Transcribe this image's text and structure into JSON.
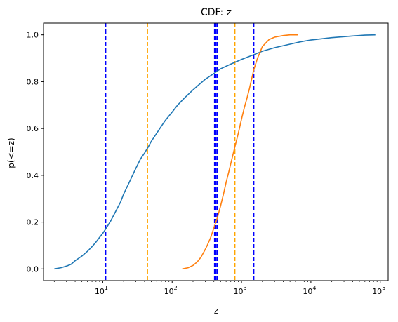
{
  "chart_data": {
    "type": "line",
    "title": "CDF: z",
    "xlabel": "z",
    "ylabel": "p(<=z)",
    "xscale": "log",
    "xlim": [
      1.4,
      130000
    ],
    "ylim": [
      -0.05,
      1.05
    ],
    "x_ticks": [
      {
        "value": 10,
        "base": "10",
        "exp": "1"
      },
      {
        "value": 100,
        "base": "10",
        "exp": "2"
      },
      {
        "value": 1000,
        "base": "10",
        "exp": "3"
      },
      {
        "value": 10000,
        "base": "10",
        "exp": "4"
      },
      {
        "value": 100000,
        "base": "10",
        "exp": "5"
      }
    ],
    "y_ticks": [
      "0.0",
      "0.2",
      "0.4",
      "0.6",
      "0.8",
      "1.0"
    ],
    "grid": false,
    "series": [
      {
        "color": "#1f77b4",
        "points": [
          [
            2,
            0.0
          ],
          [
            2.5,
            0.005
          ],
          [
            3,
            0.012
          ],
          [
            3.5,
            0.02
          ],
          [
            4,
            0.035
          ],
          [
            5,
            0.055
          ],
          [
            6,
            0.075
          ],
          [
            7,
            0.095
          ],
          [
            8,
            0.115
          ],
          [
            9,
            0.135
          ],
          [
            10,
            0.152
          ],
          [
            11,
            0.17
          ],
          [
            13,
            0.205
          ],
          [
            15,
            0.24
          ],
          [
            18,
            0.285
          ],
          [
            20,
            0.32
          ],
          [
            25,
            0.38
          ],
          [
            30,
            0.43
          ],
          [
            35,
            0.47
          ],
          [
            40,
            0.495
          ],
          [
            45,
            0.52
          ],
          [
            50,
            0.545
          ],
          [
            60,
            0.58
          ],
          [
            70,
            0.61
          ],
          [
            80,
            0.635
          ],
          [
            100,
            0.67
          ],
          [
            120,
            0.7
          ],
          [
            150,
            0.73
          ],
          [
            200,
            0.765
          ],
          [
            250,
            0.79
          ],
          [
            300,
            0.81
          ],
          [
            400,
            0.835
          ],
          [
            500,
            0.855
          ],
          [
            700,
            0.875
          ],
          [
            1000,
            0.895
          ],
          [
            1500,
            0.915
          ],
          [
            2000,
            0.93
          ],
          [
            3000,
            0.945
          ],
          [
            5000,
            0.96
          ],
          [
            7000,
            0.97
          ],
          [
            10000,
            0.978
          ],
          [
            20000,
            0.988
          ],
          [
            40000,
            0.995
          ],
          [
            60000,
            0.999
          ],
          [
            85000,
            1.0
          ]
        ]
      },
      {
        "color": "#ff7f0e",
        "points": [
          [
            140,
            0.0
          ],
          [
            170,
            0.005
          ],
          [
            200,
            0.015
          ],
          [
            230,
            0.03
          ],
          [
            260,
            0.05
          ],
          [
            290,
            0.075
          ],
          [
            320,
            0.1
          ],
          [
            360,
            0.135
          ],
          [
            400,
            0.175
          ],
          [
            450,
            0.22
          ],
          [
            500,
            0.27
          ],
          [
            550,
            0.32
          ],
          [
            600,
            0.37
          ],
          [
            650,
            0.41
          ],
          [
            700,
            0.45
          ],
          [
            800,
            0.52
          ],
          [
            900,
            0.58
          ],
          [
            1000,
            0.64
          ],
          [
            1100,
            0.69
          ],
          [
            1200,
            0.73
          ],
          [
            1300,
            0.77
          ],
          [
            1500,
            0.85
          ],
          [
            1700,
            0.9
          ],
          [
            2000,
            0.95
          ],
          [
            2500,
            0.98
          ],
          [
            3000,
            0.99
          ],
          [
            4000,
            0.997
          ],
          [
            5000,
            1.0
          ],
          [
            6500,
            1.0
          ]
        ]
      }
    ],
    "vlines": [
      {
        "x": 11,
        "color": "#0000ff"
      },
      {
        "x": 44,
        "color": "#ffa500"
      },
      {
        "x": 410,
        "color": "#0000ff"
      },
      {
        "x": 430,
        "color": "#0000ff"
      },
      {
        "x": 450,
        "color": "#0000ff"
      },
      {
        "x": 800,
        "color": "#ffa500"
      },
      {
        "x": 1500,
        "color": "#0000ff"
      }
    ]
  }
}
